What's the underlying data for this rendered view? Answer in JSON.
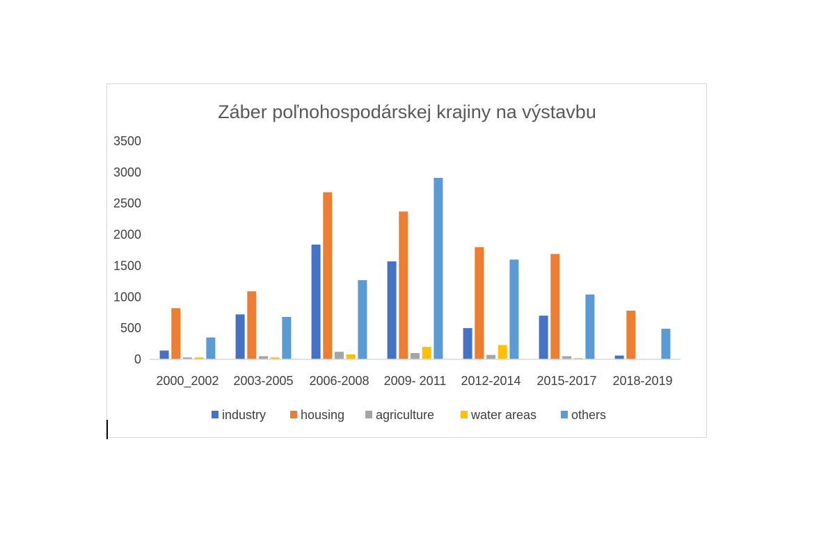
{
  "chart_data": {
    "type": "bar",
    "title": "Záber poľnohospodárskej krajiny na výstavbu",
    "categories": [
      "2000_2002",
      "2003-2005",
      "2006-2008",
      "2009- 2011",
      "2012-2014",
      "2015-2017",
      "2018-2019"
    ],
    "series": [
      {
        "name": "industry",
        "color": "#4472C4",
        "values": [
          140,
          720,
          1840,
          1570,
          500,
          700,
          60
        ]
      },
      {
        "name": "housing",
        "color": "#ED7D31",
        "values": [
          820,
          1090,
          2680,
          2370,
          1800,
          1690,
          780
        ]
      },
      {
        "name": "agriculture",
        "color": "#A5A5A5",
        "values": [
          30,
          50,
          120,
          100,
          70,
          50,
          0
        ]
      },
      {
        "name": "water areas",
        "color": "#FFC000",
        "values": [
          30,
          30,
          80,
          200,
          230,
          20,
          0
        ]
      },
      {
        "name": "others",
        "color": "#5B9BD5",
        "values": [
          350,
          680,
          1270,
          2910,
          1600,
          1040,
          490
        ]
      }
    ],
    "ylim": [
      0,
      3500
    ],
    "yticks": [
      0,
      500,
      1000,
      1500,
      2000,
      2500,
      3000,
      3500
    ],
    "xlabel": "",
    "ylabel": "",
    "legend_position": "bottom",
    "grid": false
  }
}
